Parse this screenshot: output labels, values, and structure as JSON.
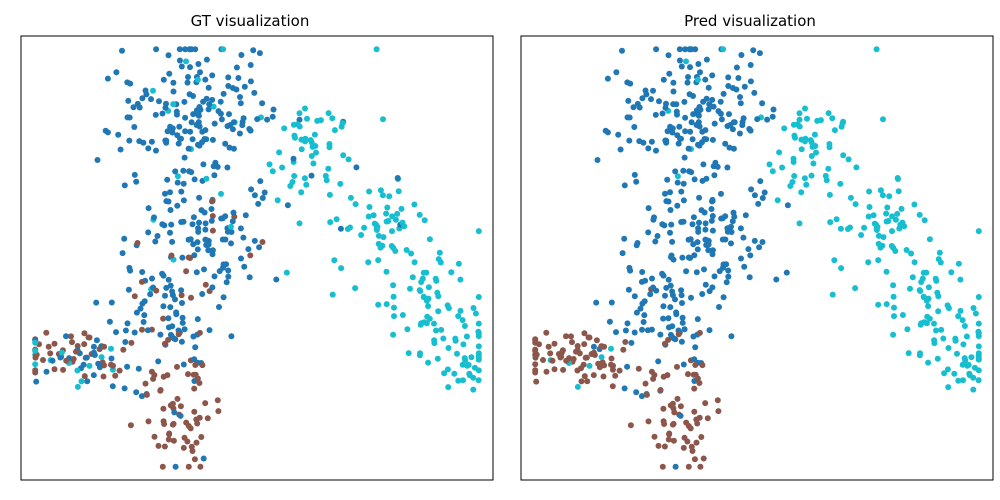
{
  "chart_data": [
    {
      "type": "scatter",
      "title": "GT visualization",
      "xlabel": "",
      "ylabel": "",
      "xlim": [
        0,
        1
      ],
      "ylim": [
        0,
        1
      ],
      "grid": false,
      "ticks": false,
      "colors": {
        "blue": "#1f77b4",
        "cyan": "#17becf",
        "brown": "#8c564b"
      },
      "clusters": [
        {
          "cx": 0.37,
          "cy": 0.82,
          "sx": 0.08,
          "sy": 0.09,
          "n": 170,
          "mix": {
            "blue": 0.93,
            "cyan": 0.07
          }
        },
        {
          "cx": 0.38,
          "cy": 0.56,
          "sx": 0.07,
          "sy": 0.07,
          "n": 110,
          "mix": {
            "blue": 0.9,
            "cyan": 0.08,
            "brown": 0.02
          }
        },
        {
          "cx": 0.62,
          "cy": 0.75,
          "sx": 0.05,
          "sy": 0.07,
          "n": 55,
          "mix": {
            "cyan": 0.92,
            "blue": 0.08
          }
        },
        {
          "cx": 0.76,
          "cy": 0.58,
          "sx": 0.05,
          "sy": 0.06,
          "n": 60,
          "mix": {
            "cyan": 0.95,
            "blue": 0.05
          }
        },
        {
          "cx": 0.87,
          "cy": 0.39,
          "sx": 0.05,
          "sy": 0.06,
          "n": 70,
          "mix": {
            "cyan": 1.0
          }
        },
        {
          "cx": 0.95,
          "cy": 0.26,
          "sx": 0.025,
          "sy": 0.03,
          "n": 25,
          "mix": {
            "cyan": 1.0
          }
        },
        {
          "cx": 0.3,
          "cy": 0.37,
          "sx": 0.06,
          "sy": 0.08,
          "n": 90,
          "mix": {
            "blue": 0.8,
            "brown": 0.17,
            "cyan": 0.03
          }
        },
        {
          "cx": 0.12,
          "cy": 0.27,
          "sx": 0.07,
          "sy": 0.03,
          "n": 80,
          "mix": {
            "brown": 0.55,
            "blue": 0.3,
            "cyan": 0.15
          }
        },
        {
          "cx": 0.34,
          "cy": 0.15,
          "sx": 0.04,
          "sy": 0.08,
          "n": 70,
          "mix": {
            "brown": 0.85,
            "blue": 0.15
          }
        }
      ]
    },
    {
      "type": "scatter",
      "title": "Pred visualization",
      "xlabel": "",
      "ylabel": "",
      "xlim": [
        0,
        1
      ],
      "ylim": [
        0,
        1
      ],
      "grid": false,
      "ticks": false,
      "colors": {
        "blue": "#1f77b4",
        "cyan": "#17becf",
        "brown": "#8c564b"
      },
      "clusters": [
        {
          "cx": 0.37,
          "cy": 0.82,
          "sx": 0.08,
          "sy": 0.09,
          "n": 170,
          "mix": {
            "blue": 0.96,
            "cyan": 0.04
          }
        },
        {
          "cx": 0.38,
          "cy": 0.56,
          "sx": 0.07,
          "sy": 0.07,
          "n": 110,
          "mix": {
            "blue": 1.0
          }
        },
        {
          "cx": 0.62,
          "cy": 0.75,
          "sx": 0.05,
          "sy": 0.07,
          "n": 55,
          "mix": {
            "cyan": 1.0
          }
        },
        {
          "cx": 0.76,
          "cy": 0.58,
          "sx": 0.05,
          "sy": 0.06,
          "n": 60,
          "mix": {
            "cyan": 1.0
          }
        },
        {
          "cx": 0.87,
          "cy": 0.39,
          "sx": 0.05,
          "sy": 0.06,
          "n": 70,
          "mix": {
            "cyan": 1.0
          }
        },
        {
          "cx": 0.95,
          "cy": 0.26,
          "sx": 0.025,
          "sy": 0.03,
          "n": 25,
          "mix": {
            "cyan": 1.0
          }
        },
        {
          "cx": 0.3,
          "cy": 0.37,
          "sx": 0.06,
          "sy": 0.08,
          "n": 90,
          "mix": {
            "blue": 0.97,
            "brown": 0.03
          }
        },
        {
          "cx": 0.12,
          "cy": 0.27,
          "sx": 0.07,
          "sy": 0.03,
          "n": 80,
          "mix": {
            "brown": 0.95,
            "cyan": 0.05
          }
        },
        {
          "cx": 0.34,
          "cy": 0.15,
          "sx": 0.04,
          "sy": 0.08,
          "n": 70,
          "mix": {
            "brown": 0.9,
            "blue": 0.1
          }
        }
      ]
    }
  ]
}
